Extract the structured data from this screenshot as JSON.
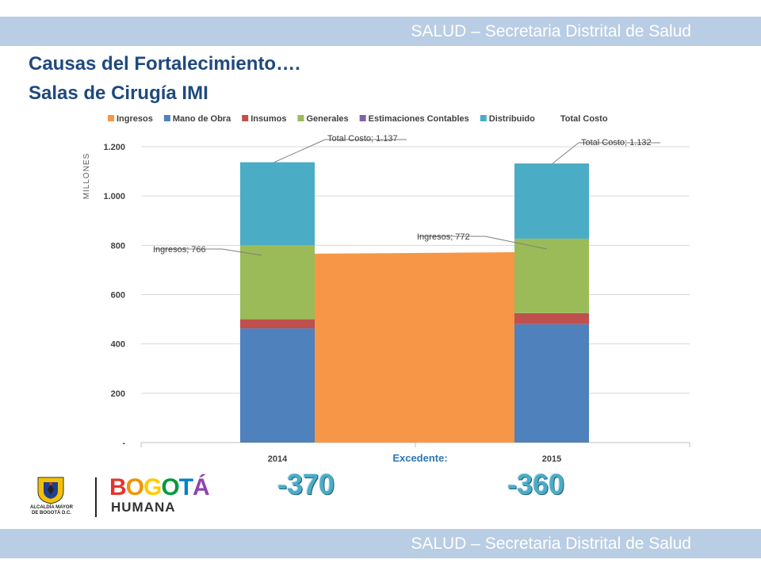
{
  "header": {
    "banner_text": "SALUD – Secretaria Distrital de Salud"
  },
  "footer": {
    "banner_text": "SALUD – Secretaria Distrital de Salud"
  },
  "slide": {
    "title_line1": "Causas del Fortalecimiento….",
    "title_line2": "Salas de Cirugía IMI"
  },
  "logo": {
    "crest_line1": "ALCALDÍA MAYOR",
    "crest_line2": "DE BOGOTÁ D.C.",
    "bogota_letters": [
      "B",
      "O",
      "G",
      "O",
      "T",
      "Á"
    ],
    "bogota_colors": [
      "#e5332a",
      "#f39200",
      "#ffcc00",
      "#009a3e",
      "#0080c9",
      "#8e44ad"
    ],
    "humana": "HUMANA"
  },
  "excedente": {
    "label": "Excedente:",
    "values": [
      "-370",
      "-360"
    ]
  },
  "chart_data": {
    "type": "bar",
    "stacked": true,
    "ylabel": "MILLONES",
    "ylim": [
      0,
      1200
    ],
    "yticks": [
      0,
      200,
      400,
      600,
      800,
      1000,
      1200
    ],
    "ytick_labels": [
      "-",
      "200",
      "400",
      "600",
      "800",
      "1.000",
      "1.200"
    ],
    "grid": true,
    "legend_position": "top",
    "legend": [
      "Ingresos",
      "Mano de Obra",
      "Insumos",
      "Generales",
      "Estimaciones Contables",
      "Distribuido",
      "Total Costo"
    ],
    "colors": {
      "Ingresos": "#f79646",
      "Mano de Obra": "#4f81bd",
      "Insumos": "#c0504d",
      "Generales": "#9bbb59",
      "Estimaciones Contables": "#8064a2",
      "Distribuido": "#4bacc6"
    },
    "categories": [
      "2014",
      "2015"
    ],
    "series": [
      {
        "name": "Mano de Obra",
        "values": [
          463,
          480
        ]
      },
      {
        "name": "Insumos",
        "values": [
          37,
          45
        ]
      },
      {
        "name": "Generales",
        "values": [
          300,
          302
        ]
      },
      {
        "name": "Estimaciones Contables",
        "values": [
          0,
          0
        ]
      },
      {
        "name": "Distribuido",
        "values": [
          337,
          305
        ]
      }
    ],
    "total_costo": [
      1137,
      1132
    ],
    "ingresos": [
      766,
      772
    ],
    "annotations": [
      {
        "text": "Total Costo; 1.137"
      },
      {
        "text": "Total Costo; 1.132"
      },
      {
        "text": "Ingresos; 766"
      },
      {
        "text": "Ingresos; 772"
      }
    ]
  }
}
